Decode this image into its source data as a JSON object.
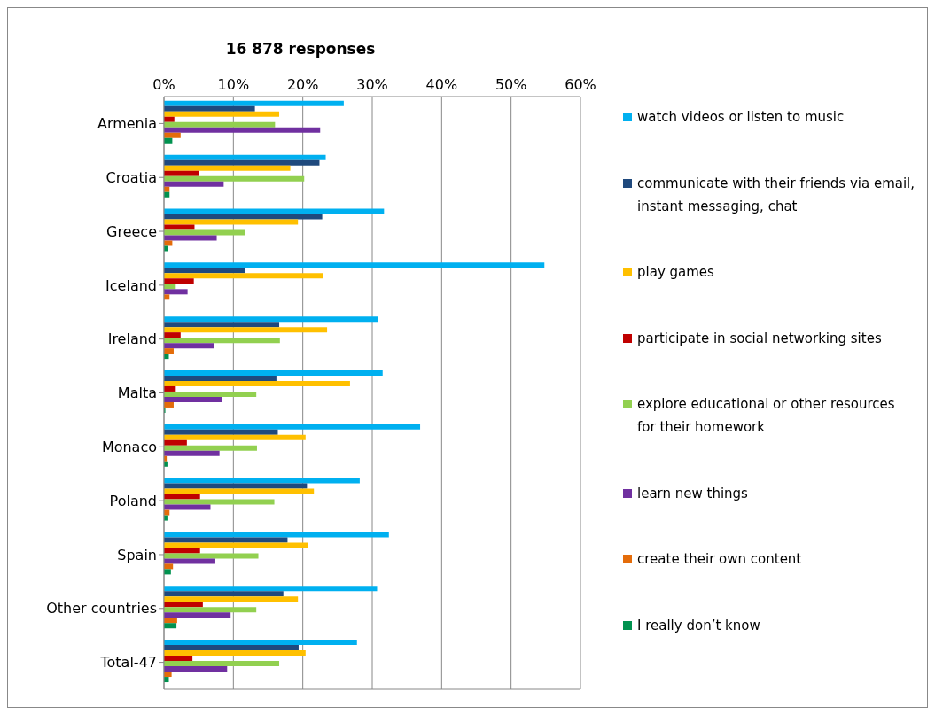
{
  "chart_data": {
    "type": "bar",
    "orientation": "horizontal",
    "title": "16 878 responses",
    "categories": [
      "Armenia",
      "Croatia",
      "Greece",
      "Iceland",
      "Ireland",
      "Malta",
      "Monaco",
      "Poland",
      "Spain",
      "Other countries",
      "Total-47"
    ],
    "series": [
      {
        "name": "watch videos or listen to music",
        "color": "#00b0f0",
        "values": [
          25.9,
          23.3,
          31.7,
          54.8,
          30.8,
          31.5,
          36.9,
          28.2,
          32.4,
          30.7,
          27.8
        ]
      },
      {
        "name": "communicate with their friends via email, instant messaging, chat",
        "color": "#1f497d",
        "values": [
          13.1,
          22.4,
          22.8,
          11.7,
          16.6,
          16.2,
          16.4,
          20.6,
          17.8,
          17.2,
          19.4
        ]
      },
      {
        "name": "play games",
        "color": "#ffc000",
        "values": [
          16.6,
          18.2,
          19.3,
          22.9,
          23.5,
          26.8,
          20.4,
          21.6,
          20.7,
          19.3,
          20.4
        ]
      },
      {
        "name": "participate in social networking sites",
        "color": "#c00000",
        "values": [
          1.5,
          5.1,
          4.4,
          4.3,
          2.4,
          1.7,
          3.3,
          5.2,
          5.2,
          5.6,
          4.1
        ]
      },
      {
        "name": "explore educational or other resources for their homework",
        "color": "#92d050",
        "values": [
          16.0,
          20.2,
          11.7,
          1.7,
          16.7,
          13.3,
          13.4,
          15.9,
          13.6,
          13.3,
          16.6
        ]
      },
      {
        "name": "learn new things",
        "color": "#7030a0",
        "values": [
          22.5,
          8.6,
          7.6,
          3.4,
          7.2,
          8.3,
          8.0,
          6.7,
          7.4,
          9.6,
          9.1
        ]
      },
      {
        "name": "create their own content",
        "color": "#e46c0a",
        "values": [
          2.4,
          0.8,
          1.2,
          0.8,
          1.4,
          1.4,
          0.4,
          0.8,
          1.3,
          1.9,
          1.1
        ]
      },
      {
        "name": "I really don’t know",
        "color": "#00924f",
        "values": [
          1.2,
          0.8,
          0.6,
          0,
          0.7,
          0.2,
          0.5,
          0.5,
          1.0,
          1.8,
          0.7
        ]
      }
    ],
    "xlim": [
      0,
      60
    ],
    "xticks": [
      {
        "value": 0,
        "label": "0%"
      },
      {
        "value": 10,
        "label": "10%"
      },
      {
        "value": 20,
        "label": "20%"
      },
      {
        "value": 30,
        "label": "30%"
      },
      {
        "value": 40,
        "label": "40%"
      },
      {
        "value": 50,
        "label": "50%"
      },
      {
        "value": 60,
        "label": "60%"
      }
    ],
    "grid": "x",
    "legend": "right"
  }
}
